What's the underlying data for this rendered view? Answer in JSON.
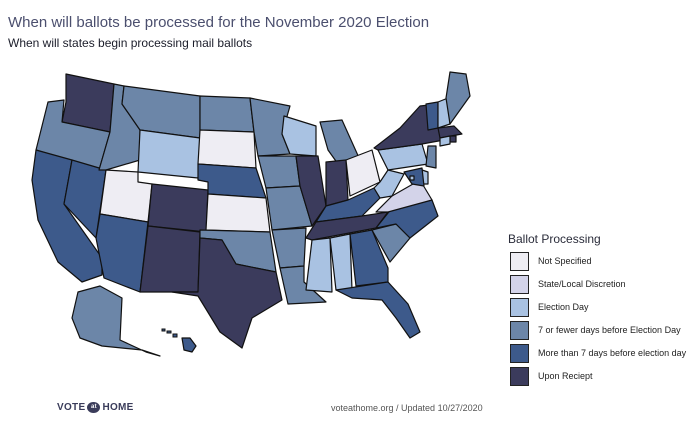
{
  "title": "When will ballots be processed for the November 2020 Election",
  "subtitle": "When will states begin processing mail ballots",
  "legend": {
    "title": "Ballot Processing",
    "items": [
      {
        "key": "ns",
        "label": "Not Specified",
        "color": "#eeedf3"
      },
      {
        "key": "sl",
        "label": "State/Local Discretion",
        "color": "#d3d3e9"
      },
      {
        "key": "ed",
        "label": "Election Day",
        "color": "#a9c2e2"
      },
      {
        "key": "le7",
        "label": "7 or fewer days before Election Day",
        "color": "#6c86a8"
      },
      {
        "key": "gt7",
        "label": "More than 7 days before election day",
        "color": "#3d5a8b"
      },
      {
        "key": "ur",
        "label": "Upon Reciept",
        "color": "#3b3b5c"
      }
    ]
  },
  "states": [
    {
      "name": "WA",
      "category": "ur"
    },
    {
      "name": "OR",
      "category": "le7"
    },
    {
      "name": "CA",
      "category": "gt7"
    },
    {
      "name": "NV",
      "category": "gt7"
    },
    {
      "name": "ID",
      "category": "le7"
    },
    {
      "name": "MT",
      "category": "le7"
    },
    {
      "name": "WY",
      "category": "ed"
    },
    {
      "name": "UT",
      "category": "ns"
    },
    {
      "name": "AZ",
      "category": "gt7"
    },
    {
      "name": "CO",
      "category": "ur"
    },
    {
      "name": "NM",
      "category": "ur"
    },
    {
      "name": "ND",
      "category": "le7"
    },
    {
      "name": "SD",
      "category": "ns"
    },
    {
      "name": "NE",
      "category": "gt7"
    },
    {
      "name": "KS",
      "category": "ns"
    },
    {
      "name": "OK",
      "category": "le7"
    },
    {
      "name": "TX",
      "category": "ur"
    },
    {
      "name": "MN",
      "category": "le7"
    },
    {
      "name": "IA",
      "category": "le7"
    },
    {
      "name": "MO",
      "category": "le7"
    },
    {
      "name": "AR",
      "category": "le7"
    },
    {
      "name": "LA",
      "category": "le7"
    },
    {
      "name": "WI",
      "category": "ed"
    },
    {
      "name": "IL",
      "category": "ur"
    },
    {
      "name": "MI",
      "category": "le7"
    },
    {
      "name": "IN",
      "category": "ur"
    },
    {
      "name": "OH",
      "category": "ns"
    },
    {
      "name": "KY",
      "category": "gt7"
    },
    {
      "name": "TN",
      "category": "ur"
    },
    {
      "name": "MS",
      "category": "ed"
    },
    {
      "name": "AL",
      "category": "ed"
    },
    {
      "name": "GA",
      "category": "gt7"
    },
    {
      "name": "FL",
      "category": "gt7"
    },
    {
      "name": "SC",
      "category": "le7"
    },
    {
      "name": "NC",
      "category": "gt7"
    },
    {
      "name": "VA",
      "category": "sl"
    },
    {
      "name": "WV",
      "category": "ed"
    },
    {
      "name": "PA",
      "category": "ed"
    },
    {
      "name": "NY",
      "category": "ur"
    },
    {
      "name": "VT",
      "category": "gt7"
    },
    {
      "name": "NH",
      "category": "ed"
    },
    {
      "name": "ME",
      "category": "le7"
    },
    {
      "name": "MA",
      "category": "ur"
    },
    {
      "name": "RI",
      "category": "ur"
    },
    {
      "name": "CT",
      "category": "ed"
    },
    {
      "name": "NJ",
      "category": "le7"
    },
    {
      "name": "DE",
      "category": "ed"
    },
    {
      "name": "MD",
      "category": "gt7"
    },
    {
      "name": "DC",
      "category": "ed"
    },
    {
      "name": "AK",
      "category": "le7"
    },
    {
      "name": "HI",
      "category": "gt7"
    }
  ],
  "footer": {
    "logo_left": "VOTE",
    "logo_mark": "at",
    "logo_right": "HOME",
    "credit": "voteathome.org / Updated 10/27/2020"
  }
}
